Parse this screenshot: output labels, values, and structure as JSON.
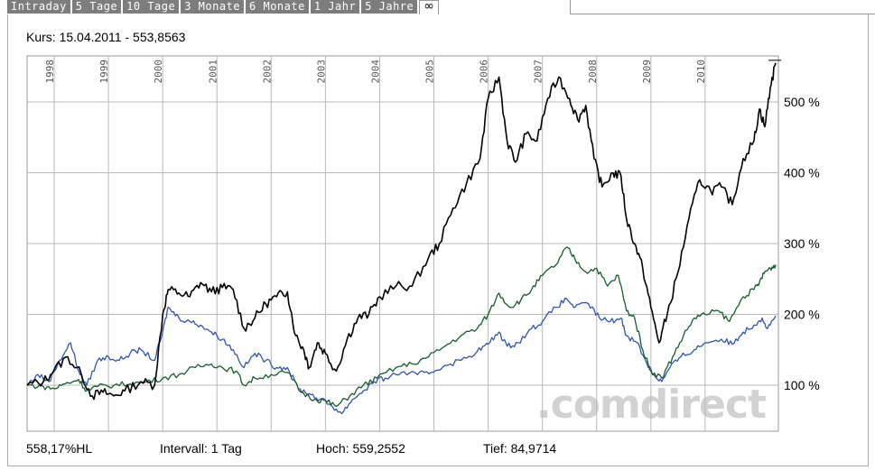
{
  "tabs": [
    {
      "label": "Intraday",
      "active": false
    },
    {
      "label": "5 Tage",
      "active": false
    },
    {
      "label": "10 Tage",
      "active": false
    },
    {
      "label": "3 Monate",
      "active": false
    },
    {
      "label": "6 Monate",
      "active": false
    },
    {
      "label": "1 Jahr",
      "active": false
    },
    {
      "label": "5 Jahre",
      "active": false
    },
    {
      "label": "∞",
      "active": true
    }
  ],
  "kurs_label": "Kurs: 15.04.2011 - 553,8563",
  "footer": {
    "change": "558,17%HL",
    "interval": "Intervall: 1 Tag",
    "high": "Hoch: 559,2552",
    "low": "Tief: 84,9714"
  },
  "watermark": ".comdirect",
  "colors": {
    "main": "#000000",
    "compare_green": "#1a5a2e",
    "compare_blue": "#3355aa",
    "grid": "#b8b8b8"
  },
  "chart_data": {
    "type": "line",
    "title": "",
    "xlabel": "",
    "ylabel": "",
    "x_ticks": [
      "1998",
      "1999",
      "2000",
      "2001",
      "2002",
      "2003",
      "2004",
      "2005",
      "2006",
      "2007",
      "2008",
      "2009",
      "2010"
    ],
    "y_ticks": [
      "100 %",
      "200 %",
      "300 %",
      "400 %",
      "500 %"
    ],
    "xlim": [
      1997.5,
      2011.35
    ],
    "ylim": [
      35,
      565
    ],
    "y_axis_position": "right",
    "grid": true,
    "series": [
      {
        "color": "black",
        "points": [
          [
            1997.5,
            100
          ],
          [
            1997.8,
            105
          ],
          [
            1998.0,
            122
          ],
          [
            1998.25,
            140
          ],
          [
            1998.5,
            115
          ],
          [
            1998.7,
            85
          ],
          [
            1998.9,
            90
          ],
          [
            1999.1,
            85
          ],
          [
            1999.3,
            92
          ],
          [
            1999.6,
            105
          ],
          [
            1999.85,
            100
          ],
          [
            2000.0,
            200
          ],
          [
            2000.1,
            235
          ],
          [
            2000.3,
            230
          ],
          [
            2000.5,
            225
          ],
          [
            2000.7,
            245
          ],
          [
            2000.9,
            232
          ],
          [
            2001.1,
            238
          ],
          [
            2001.3,
            235
          ],
          [
            2001.5,
            180
          ],
          [
            2001.7,
            195
          ],
          [
            2001.9,
            215
          ],
          [
            2002.1,
            225
          ],
          [
            2002.3,
            232
          ],
          [
            2002.45,
            170
          ],
          [
            2002.6,
            150
          ],
          [
            2002.7,
            125
          ],
          [
            2002.85,
            160
          ],
          [
            2003.0,
            145
          ],
          [
            2003.2,
            120
          ],
          [
            2003.4,
            165
          ],
          [
            2003.6,
            195
          ],
          [
            2003.8,
            200
          ],
          [
            2004.0,
            225
          ],
          [
            2004.3,
            240
          ],
          [
            2004.6,
            240
          ],
          [
            2004.9,
            280
          ],
          [
            2005.1,
            300
          ],
          [
            2005.35,
            350
          ],
          [
            2005.6,
            385
          ],
          [
            2005.85,
            420
          ],
          [
            2006.0,
            505
          ],
          [
            2006.2,
            535
          ],
          [
            2006.35,
            445
          ],
          [
            2006.5,
            415
          ],
          [
            2006.7,
            455
          ],
          [
            2006.9,
            445
          ],
          [
            2007.1,
            505
          ],
          [
            2007.3,
            535
          ],
          [
            2007.5,
            505
          ],
          [
            2007.65,
            475
          ],
          [
            2007.8,
            495
          ],
          [
            2007.95,
            420
          ],
          [
            2008.1,
            380
          ],
          [
            2008.3,
            400
          ],
          [
            2008.45,
            395
          ],
          [
            2008.55,
            335
          ],
          [
            2008.7,
            300
          ],
          [
            2008.85,
            265
          ],
          [
            2009.0,
            210
          ],
          [
            2009.15,
            160
          ],
          [
            2009.3,
            200
          ],
          [
            2009.5,
            260
          ],
          [
            2009.7,
            335
          ],
          [
            2009.9,
            390
          ],
          [
            2010.1,
            375
          ],
          [
            2010.3,
            380
          ],
          [
            2010.5,
            355
          ],
          [
            2010.7,
            420
          ],
          [
            2010.9,
            445
          ],
          [
            2011.0,
            490
          ],
          [
            2011.1,
            465
          ],
          [
            2011.2,
            520
          ],
          [
            2011.3,
            555
          ]
        ]
      },
      {
        "color": "green",
        "points": [
          [
            1997.5,
            100
          ],
          [
            1997.8,
            98
          ],
          [
            1998.0,
            95
          ],
          [
            1998.2,
            102
          ],
          [
            1998.45,
            108
          ],
          [
            1998.6,
            92
          ],
          [
            1998.8,
            98
          ],
          [
            1999.1,
            100
          ],
          [
            1999.4,
            102
          ],
          [
            1999.7,
            105
          ],
          [
            2000.0,
            110
          ],
          [
            2000.3,
            115
          ],
          [
            2000.6,
            125
          ],
          [
            2000.9,
            130
          ],
          [
            2001.1,
            125
          ],
          [
            2001.35,
            120
          ],
          [
            2001.5,
            100
          ],
          [
            2001.7,
            110
          ],
          [
            2002.0,
            115
          ],
          [
            2002.3,
            118
          ],
          [
            2002.55,
            90
          ],
          [
            2002.8,
            80
          ],
          [
            2003.0,
            78
          ],
          [
            2003.2,
            70
          ],
          [
            2003.45,
            85
          ],
          [
            2003.7,
            100
          ],
          [
            2003.95,
            110
          ],
          [
            2004.3,
            125
          ],
          [
            2004.6,
            130
          ],
          [
            2004.9,
            140
          ],
          [
            2005.2,
            155
          ],
          [
            2005.5,
            170
          ],
          [
            2005.8,
            180
          ],
          [
            2006.0,
            200
          ],
          [
            2006.2,
            230
          ],
          [
            2006.4,
            210
          ],
          [
            2006.6,
            220
          ],
          [
            2006.8,
            235
          ],
          [
            2007.0,
            255
          ],
          [
            2007.25,
            270
          ],
          [
            2007.45,
            295
          ],
          [
            2007.6,
            278
          ],
          [
            2007.8,
            260
          ],
          [
            2008.0,
            265
          ],
          [
            2008.2,
            240
          ],
          [
            2008.4,
            255
          ],
          [
            2008.55,
            205
          ],
          [
            2008.7,
            195
          ],
          [
            2008.85,
            150
          ],
          [
            2009.0,
            120
          ],
          [
            2009.2,
            110
          ],
          [
            2009.4,
            140
          ],
          [
            2009.6,
            170
          ],
          [
            2009.8,
            195
          ],
          [
            2010.0,
            200
          ],
          [
            2010.25,
            205
          ],
          [
            2010.45,
            190
          ],
          [
            2010.7,
            225
          ],
          [
            2010.9,
            235
          ],
          [
            2011.0,
            245
          ],
          [
            2011.1,
            260
          ],
          [
            2011.2,
            265
          ],
          [
            2011.3,
            270
          ]
        ]
      },
      {
        "color": "blue",
        "points": [
          [
            1997.5,
            100
          ],
          [
            1997.7,
            115
          ],
          [
            1997.9,
            105
          ],
          [
            1998.1,
            135
          ],
          [
            1998.3,
            160
          ],
          [
            1998.45,
            120
          ],
          [
            1998.6,
            100
          ],
          [
            1998.8,
            135
          ],
          [
            1999.0,
            140
          ],
          [
            1999.2,
            135
          ],
          [
            1999.4,
            145
          ],
          [
            1999.6,
            150
          ],
          [
            1999.85,
            135
          ],
          [
            2000.0,
            175
          ],
          [
            2000.1,
            210
          ],
          [
            2000.3,
            195
          ],
          [
            2000.5,
            190
          ],
          [
            2000.7,
            185
          ],
          [
            2000.9,
            175
          ],
          [
            2001.1,
            165
          ],
          [
            2001.3,
            150
          ],
          [
            2001.5,
            125
          ],
          [
            2001.7,
            145
          ],
          [
            2001.9,
            135
          ],
          [
            2002.1,
            125
          ],
          [
            2002.3,
            125
          ],
          [
            2002.5,
            95
          ],
          [
            2002.7,
            88
          ],
          [
            2002.9,
            80
          ],
          [
            2003.1,
            72
          ],
          [
            2003.3,
            60
          ],
          [
            2003.5,
            80
          ],
          [
            2003.7,
            92
          ],
          [
            2003.9,
            105
          ],
          [
            2004.1,
            110
          ],
          [
            2004.4,
            118
          ],
          [
            2004.7,
            115
          ],
          [
            2004.95,
            118
          ],
          [
            2005.2,
            128
          ],
          [
            2005.5,
            135
          ],
          [
            2005.8,
            148
          ],
          [
            2006.0,
            158
          ],
          [
            2006.2,
            175
          ],
          [
            2006.35,
            155
          ],
          [
            2006.55,
            160
          ],
          [
            2006.8,
            180
          ],
          [
            2007.0,
            190
          ],
          [
            2007.25,
            210
          ],
          [
            2007.45,
            222
          ],
          [
            2007.6,
            210
          ],
          [
            2007.85,
            215
          ],
          [
            2008.05,
            195
          ],
          [
            2008.25,
            190
          ],
          [
            2008.45,
            195
          ],
          [
            2008.55,
            170
          ],
          [
            2008.75,
            160
          ],
          [
            2008.9,
            135
          ],
          [
            2009.05,
            115
          ],
          [
            2009.2,
            105
          ],
          [
            2009.35,
            125
          ],
          [
            2009.55,
            140
          ],
          [
            2009.8,
            150
          ],
          [
            2010.0,
            160
          ],
          [
            2010.3,
            165
          ],
          [
            2010.5,
            158
          ],
          [
            2010.7,
            175
          ],
          [
            2010.9,
            185
          ],
          [
            2011.05,
            195
          ],
          [
            2011.15,
            180
          ],
          [
            2011.3,
            198
          ]
        ]
      }
    ]
  }
}
